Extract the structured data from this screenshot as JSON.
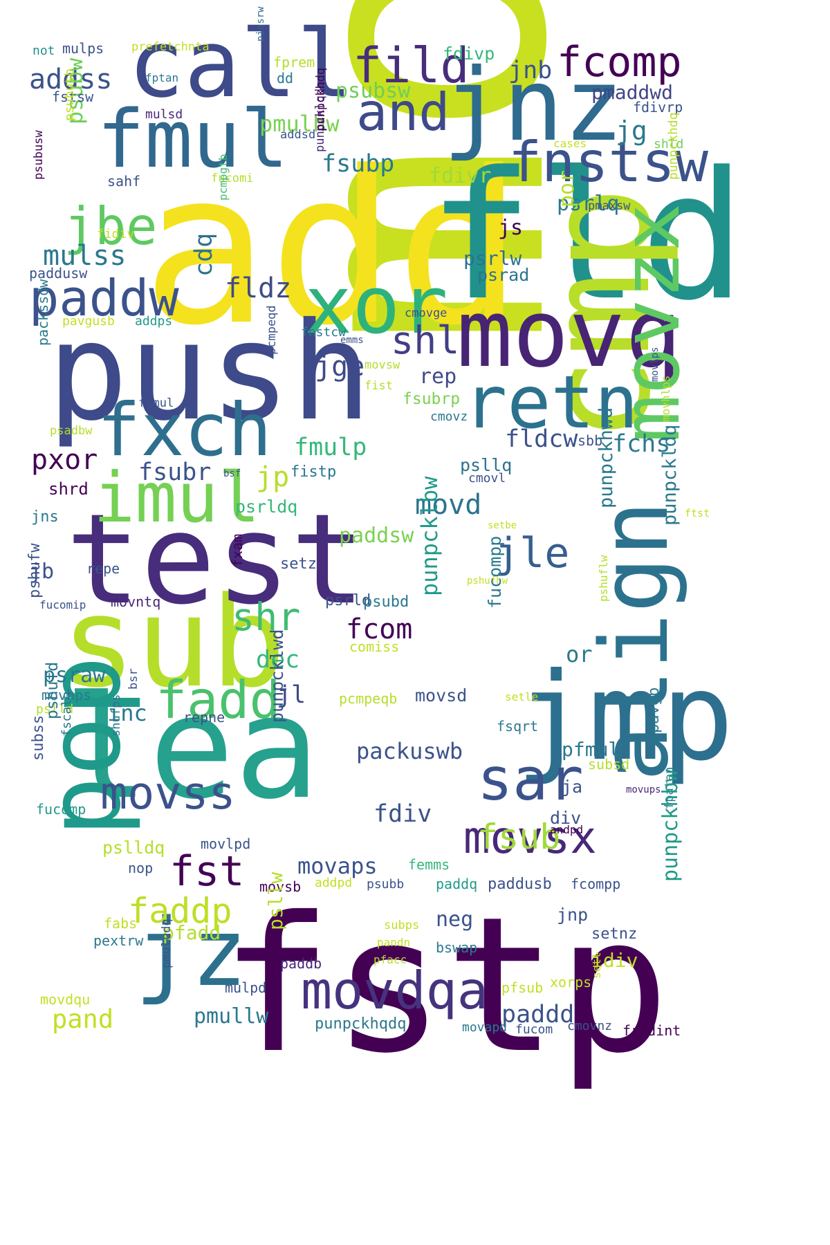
{
  "palette": {
    "dark_purple": "#440154",
    "indigo": "#3b528b",
    "blue": "#31688e",
    "teal": "#21918c",
    "green": "#35b779",
    "lime": "#90d743",
    "yellow_green": "#c2df23",
    "yellow": "#fde725",
    "navy_purple": "#472d7b"
  },
  "words": [
    {
      "text": "mov",
      "color": "#c8e020",
      "vertical": true
    },
    {
      "text": "add",
      "color": "#f4e21e"
    },
    {
      "text": "fld",
      "color": "#21918c"
    },
    {
      "text": "push",
      "color": "#3e4a89"
    },
    {
      "text": "fstp",
      "color": "#440154"
    },
    {
      "text": "cmp",
      "color": "#b8de29",
      "vertical": true
    },
    {
      "text": "lea",
      "color": "#25a18e"
    },
    {
      "text": "sub",
      "color": "#b5de2b"
    },
    {
      "text": "test",
      "color": "#472d7b"
    },
    {
      "text": "jmp",
      "color": "#2d6f8e"
    },
    {
      "text": "pop",
      "color": "#1f9a8a",
      "vertical": true
    },
    {
      "text": "align",
      "color": "#2c728e",
      "vertical": true
    },
    {
      "text": "call",
      "color": "#3e4a89"
    },
    {
      "text": "jnz",
      "color": "#2e6b8e"
    },
    {
      "text": "movq",
      "color": "#482475"
    },
    {
      "text": "fmul",
      "color": "#31688e"
    },
    {
      "text": "xor",
      "color": "#2db27d"
    },
    {
      "text": "retn",
      "color": "#2c728e"
    },
    {
      "text": "fxch",
      "color": "#2e6f8e"
    },
    {
      "text": "jz",
      "color": "#2d708e"
    },
    {
      "text": "movzx",
      "color": "#5ec962",
      "vertical": true
    },
    {
      "text": "imul",
      "color": "#75d054"
    },
    {
      "text": "fnstsw",
      "color": "#3b528b"
    },
    {
      "text": "fild",
      "color": "#472d7b"
    },
    {
      "text": "fcomp",
      "color": "#440154"
    },
    {
      "text": "and",
      "color": "#3e4a89"
    },
    {
      "text": "jbe",
      "color": "#5ec962"
    },
    {
      "text": "paddw",
      "color": "#3b528b"
    },
    {
      "text": "movdqa",
      "color": "#46337e"
    },
    {
      "text": "movss",
      "color": "#3b528b"
    },
    {
      "text": "movsx",
      "color": "#482878"
    },
    {
      "text": "sar",
      "color": "#3b528b"
    },
    {
      "text": "fadd",
      "color": "#4ac16d"
    },
    {
      "text": "shr",
      "color": "#3fbc73"
    },
    {
      "text": "shl",
      "color": "#433e85"
    },
    {
      "text": "fst",
      "color": "#440154"
    },
    {
      "text": "jle",
      "color": "#355f8d"
    },
    {
      "text": "fsub",
      "color": "#a0da39"
    },
    {
      "text": "faddp",
      "color": "#bddf26"
    },
    {
      "text": "addss",
      "color": "#3b528b"
    },
    {
      "text": "mulss",
      "color": "#2a788e"
    },
    {
      "text": "fldz",
      "color": "#3e4a89"
    },
    {
      "text": "jge",
      "color": "#3e4a89"
    },
    {
      "text": "pxor",
      "color": "#440154"
    },
    {
      "text": "fsubr",
      "color": "#3b528b"
    },
    {
      "text": "jp",
      "color": "#b5de2b"
    },
    {
      "text": "movd",
      "color": "#2c728e"
    },
    {
      "text": "fmulp",
      "color": "#35b779"
    },
    {
      "text": "fchs",
      "color": "#2a788e"
    },
    {
      "text": "fldcw",
      "color": "#3b528b"
    },
    {
      "text": "rep",
      "color": "#3e4a89"
    },
    {
      "text": "fsubp",
      "color": "#2a788e"
    },
    {
      "text": "pmulhw",
      "color": "#7ad151"
    },
    {
      "text": "psubsw",
      "color": "#6ece58"
    },
    {
      "text": "jnb",
      "color": "#3b528b"
    },
    {
      "text": "pmaddwd",
      "color": "#414487"
    },
    {
      "text": "jg",
      "color": "#2a788e"
    },
    {
      "text": "fdivr",
      "color": "#a0da39"
    },
    {
      "text": "psrlq",
      "color": "#2a788e"
    },
    {
      "text": "js",
      "color": "#440154"
    },
    {
      "text": "psrlw",
      "color": "#2c728e"
    },
    {
      "text": "psrad",
      "color": "#2c728e"
    },
    {
      "text": "por",
      "color": "#b5de2b",
      "vertical": true
    },
    {
      "text": "cdq",
      "color": "#2c728e",
      "vertical": true
    },
    {
      "text": "psubw",
      "color": "#6ece58",
      "vertical": true
    },
    {
      "text": "fdivp",
      "color": "#35b779"
    },
    {
      "text": "fprem",
      "color": "#b5de2b"
    },
    {
      "text": "mulps",
      "color": "#3b528b"
    },
    {
      "text": "not",
      "color": "#21918c"
    },
    {
      "text": "prefetchnta",
      "color": "#c2df23"
    },
    {
      "text": "fstsw",
      "color": "#3b528b"
    },
    {
      "text": "fptan",
      "color": "#2a788e"
    },
    {
      "text": "dd",
      "color": "#2a788e"
    },
    {
      "text": "pinsrw",
      "color": "#31688e",
      "vertical": true
    },
    {
      "text": "mulsd",
      "color": "#482878"
    },
    {
      "text": "addsd",
      "color": "#3b528b"
    },
    {
      "text": "fdivrp",
      "color": "#3b528b"
    },
    {
      "text": "shld",
      "color": "#6ece58"
    },
    {
      "text": "cases",
      "color": "#c2df23"
    },
    {
      "text": "psubusb",
      "color": "#c2df23",
      "vertical": true
    },
    {
      "text": "psubusw",
      "color": "#440154",
      "vertical": true
    },
    {
      "text": "sahf",
      "color": "#3b528b"
    },
    {
      "text": "fucomi",
      "color": "#b5de2b"
    },
    {
      "text": "punpcklqdq",
      "color": "#482878",
      "vertical": true
    },
    {
      "text": "pmaxsw",
      "color": "#3b528b"
    },
    {
      "text": "punpckhdq",
      "color": "#440154",
      "vertical": true
    },
    {
      "text": "fidiv",
      "color": "#c2df23"
    },
    {
      "text": "pcmpgtb",
      "color": "#3fbc73",
      "vertical": true
    },
    {
      "text": "paddusw",
      "color": "#3b528b"
    },
    {
      "text": "punpckhdq",
      "color": "#b5de2b",
      "vertical": true
    },
    {
      "text": "pavgusb",
      "color": "#c2df23"
    },
    {
      "text": "addps",
      "color": "#1f9a8a"
    },
    {
      "text": "cmovge",
      "color": "#3b528b"
    },
    {
      "text": "fnstcw",
      "color": "#2a788e"
    },
    {
      "text": "emms",
      "color": "#3b528b"
    },
    {
      "text": "movsw",
      "color": "#b5de2b"
    },
    {
      "text": "fist",
      "color": "#b5de2b"
    },
    {
      "text": "pcmpeqd",
      "color": "#3b528b",
      "vertical": true
    },
    {
      "text": "packssdw",
      "color": "#2a788e",
      "vertical": true
    },
    {
      "text": "fimul",
      "color": "#3b528b"
    },
    {
      "text": "psadbw",
      "color": "#b5de2b"
    },
    {
      "text": "fsubrp",
      "color": "#7ad151"
    },
    {
      "text": "cmovz",
      "color": "#2a788e"
    },
    {
      "text": "movlps",
      "color": "#3b528b",
      "vertical": true
    },
    {
      "text": "movhlps",
      "color": "#b5de2b",
      "vertical": true
    },
    {
      "text": "sbb",
      "color": "#3b528b"
    },
    {
      "text": "fistp",
      "color": "#2a788e"
    },
    {
      "text": "bsf",
      "color": "#3b528b"
    },
    {
      "text": "psllq",
      "color": "#2c728e"
    },
    {
      "text": "cmovl",
      "color": "#3b528b"
    },
    {
      "text": "shrd",
      "color": "#440154"
    },
    {
      "text": "psrldq",
      "color": "#35b779"
    },
    {
      "text": "jns",
      "color": "#2a788e"
    },
    {
      "text": "ftst",
      "color": "#c2df23"
    },
    {
      "text": "setbe",
      "color": "#c2df23"
    },
    {
      "text": "paddsw",
      "color": "#7ad151"
    },
    {
      "text": "punpckhwd",
      "color": "#2a788e",
      "vertical": true
    },
    {
      "text": "punpckldq",
      "color": "#2a788e",
      "vertical": true
    },
    {
      "text": "jb",
      "color": "#3b528b"
    },
    {
      "text": "repe",
      "color": "#3b528b"
    },
    {
      "text": "setz",
      "color": "#3b528b"
    },
    {
      "text": "fxam",
      "color": "#440154",
      "vertical": true
    },
    {
      "text": "psrld",
      "color": "#3b528b"
    },
    {
      "text": "pshufhw",
      "color": "#c2df23"
    },
    {
      "text": "fucomip",
      "color": "#3b528b"
    },
    {
      "text": "movntq",
      "color": "#482878"
    },
    {
      "text": "psubd",
      "color": "#2a788e"
    },
    {
      "text": "pshufw",
      "color": "#3b528b",
      "vertical": true
    },
    {
      "text": "fcom",
      "color": "#440154"
    },
    {
      "text": "comiss",
      "color": "#c2df23"
    },
    {
      "text": "punpcklbw",
      "color": "#1f9a8a",
      "vertical": true
    },
    {
      "text": "fucompp",
      "color": "#2a788e",
      "vertical": true
    },
    {
      "text": "or",
      "color": "#2a788e"
    },
    {
      "text": "pshuflw",
      "color": "#b5de2b",
      "vertical": true
    },
    {
      "text": "dec",
      "color": "#35b779"
    },
    {
      "text": "psraw",
      "color": "#2a788e"
    },
    {
      "text": "movhps",
      "color": "#2a788e"
    },
    {
      "text": "jl",
      "color": "#3e4a89"
    },
    {
      "text": "inc",
      "color": "#2a788e"
    },
    {
      "text": "bsr",
      "color": "#3b528b",
      "vertical": true
    },
    {
      "text": "pslld",
      "color": "#b5de2b"
    },
    {
      "text": "repne",
      "color": "#3b528b"
    },
    {
      "text": "pcmpeqb",
      "color": "#b5de2b"
    },
    {
      "text": "movsd",
      "color": "#3b528b"
    },
    {
      "text": "setle",
      "color": "#c2df23"
    },
    {
      "text": "punpcklwd",
      "color": "#3b528b",
      "vertical": true
    },
    {
      "text": "fsqrt",
      "color": "#2a788e"
    },
    {
      "text": "pshufd",
      "color": "#2a788e",
      "vertical": true
    },
    {
      "text": "fscale",
      "color": "#2a788e",
      "vertical": true
    },
    {
      "text": "shufps",
      "color": "#2a788e",
      "vertical": true
    },
    {
      "text": "subss",
      "color": "#3b528b",
      "vertical": true
    },
    {
      "text": "packuswb",
      "color": "#3b528b"
    },
    {
      "text": "pfmul",
      "color": "#2a788e"
    },
    {
      "text": "pavgb",
      "color": "#2a788e",
      "vertical": true
    },
    {
      "text": "subsd",
      "color": "#b5de2b"
    },
    {
      "text": "movups",
      "color": "#482878"
    },
    {
      "text": "ja",
      "color": "#3b528b"
    },
    {
      "text": "fucomp",
      "color": "#1f9a8a"
    },
    {
      "text": "fdiv",
      "color": "#3b528b"
    },
    {
      "text": "div",
      "color": "#3b528b"
    },
    {
      "text": "andpd",
      "color": "#440154"
    },
    {
      "text": "fpatan",
      "color": "#2a788e",
      "vertical": true
    },
    {
      "text": "pslldq",
      "color": "#b5de2b"
    },
    {
      "text": "movlpd",
      "color": "#3b528b"
    },
    {
      "text": "nop",
      "color": "#3b528b"
    },
    {
      "text": "femms",
      "color": "#35b779"
    },
    {
      "text": "movaps",
      "color": "#3b528b"
    },
    {
      "text": "movsb",
      "color": "#440154"
    },
    {
      "text": "addpd",
      "color": "#c2df23"
    },
    {
      "text": "psubb",
      "color": "#3b528b"
    },
    {
      "text": "paddq",
      "color": "#1f9a8a"
    },
    {
      "text": "paddusb",
      "color": "#3b528b"
    },
    {
      "text": "fcompp",
      "color": "#3b528b"
    },
    {
      "text": "punpckhbw",
      "color": "#1f9a8a",
      "vertical": true
    },
    {
      "text": "jnp",
      "color": "#3b528b"
    },
    {
      "text": "fabs",
      "color": "#c2df23"
    },
    {
      "text": "pfadd",
      "color": "#b5de2b"
    },
    {
      "text": "pextrw",
      "color": "#2a788e"
    },
    {
      "text": "neg",
      "color": "#3b528b"
    },
    {
      "text": "psllw",
      "color": "#b5de2b",
      "vertical": true
    },
    {
      "text": "subps",
      "color": "#c2df23"
    },
    {
      "text": "pandn",
      "color": "#c2df23"
    },
    {
      "text": "paddb",
      "color": "#482878"
    },
    {
      "text": "bswap",
      "color": "#2a788e"
    },
    {
      "text": "setnz",
      "color": "#3b528b"
    },
    {
      "text": "pfacc",
      "color": "#b5de2b"
    },
    {
      "text": "idiv",
      "color": "#c2df23"
    },
    {
      "text": "pmuludq",
      "color": "#3b528b",
      "vertical": true
    },
    {
      "text": "mulpd",
      "color": "#3b528b"
    },
    {
      "text": "pfsub",
      "color": "#c2df23"
    },
    {
      "text": "xorps",
      "color": "#c2df23"
    },
    {
      "text": "setl",
      "color": "#c2df23",
      "vertical": true
    },
    {
      "text": "movdqu",
      "color": "#c2df23"
    },
    {
      "text": "pand",
      "color": "#c2df23"
    },
    {
      "text": "pmullw",
      "color": "#2a788e"
    },
    {
      "text": "paddd",
      "color": "#3b528b"
    },
    {
      "text": "punpckhqdq",
      "color": "#2a788e"
    },
    {
      "text": "movapd",
      "color": "#2a788e"
    },
    {
      "text": "fucom",
      "color": "#3b528b"
    },
    {
      "text": "cmovnz",
      "color": "#3b528b"
    },
    {
      "text": "frndint",
      "color": "#440154"
    }
  ]
}
